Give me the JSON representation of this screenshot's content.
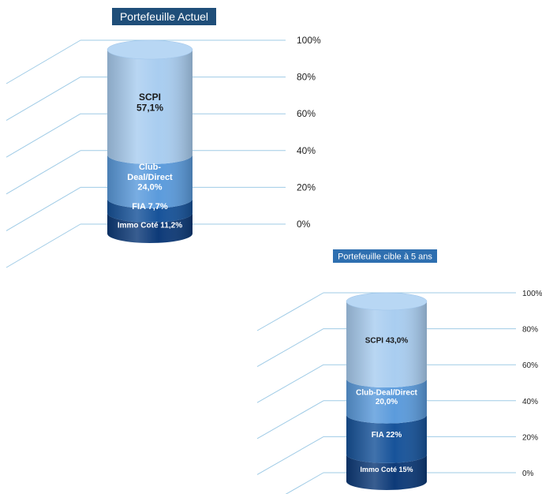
{
  "chart_data": [
    {
      "type": "stacked-bar-3d",
      "title": "Portefeuille Actuel",
      "yticks": [
        "0%",
        "20%",
        "40%",
        "60%",
        "80%",
        "100%"
      ],
      "ylim": [
        0,
        100
      ],
      "unit": "%",
      "series": [
        {
          "name": "Immo Coté",
          "value": 11.2,
          "label": "Immo Coté 11,2%",
          "color": "#0d3a78"
        },
        {
          "name": "FIA",
          "value": 7.7,
          "label": "FIA 7,7%",
          "color": "#17539a"
        },
        {
          "name": "Club-Deal/Direct",
          "value": 24.0,
          "label": "Club-\nDeal/Direct\n24,0%",
          "color": "#5b9bdc"
        },
        {
          "name": "SCPI",
          "value": 57.1,
          "label": "SCPI\n57,1%",
          "color": "#a9cdf0"
        }
      ]
    },
    {
      "type": "stacked-bar-3d",
      "title": "Portefeuille cible à 5 ans",
      "yticks": [
        "0%",
        "20%",
        "40%",
        "60%",
        "80%",
        "100%"
      ],
      "ylim": [
        0,
        100
      ],
      "unit": "%",
      "series": [
        {
          "name": "Immo Coté",
          "value": 15,
          "label": "Immo Coté 15%",
          "color": "#0d3a78"
        },
        {
          "name": "FIA",
          "value": 22,
          "label": "FIA 22%",
          "color": "#17539a"
        },
        {
          "name": "Club-Deal/Direct",
          "value": 20.0,
          "label": "Club-Deal/Direct\n20,0%",
          "color": "#5b9bdc"
        },
        {
          "name": "SCPI",
          "value": 43.0,
          "label": "SCPI 43,0%",
          "color": "#a9cdf0"
        }
      ]
    }
  ],
  "colors": {
    "title_bg": "#1f4e79",
    "title_bg_2": "#2e6fb0",
    "gridline": "#9fcbe6"
  }
}
